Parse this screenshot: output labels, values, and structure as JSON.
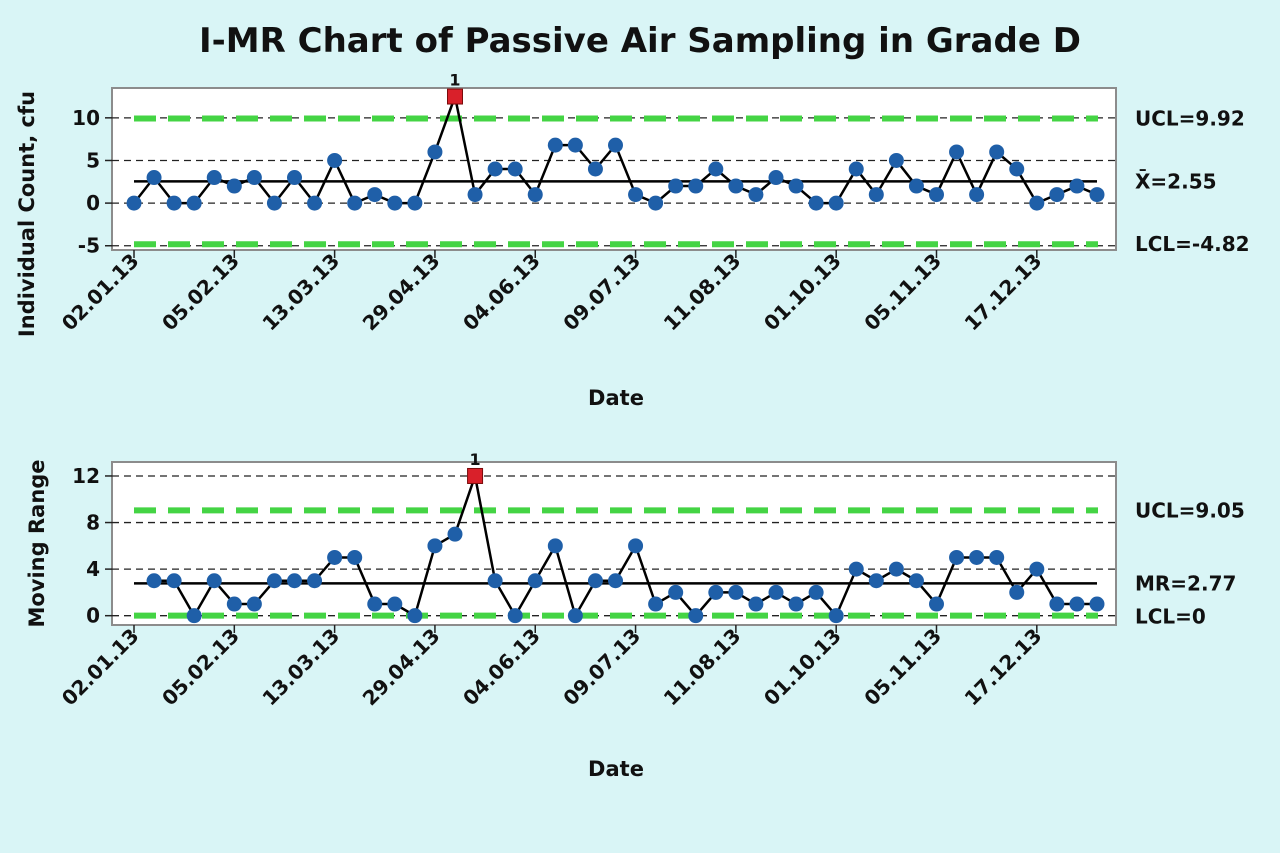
{
  "chart_data": [
    {
      "type": "line",
      "panel": "individuals",
      "title": "I-MR Chart of  Passive Air Sampling in Grade D",
      "xlabel": "Date",
      "ylabel": "Individual Count, cfu",
      "x_tick_labels": [
        "02.01.13",
        "05.02.13",
        "13.03.13",
        "29.04.13",
        "04.06.13",
        "09.07.13",
        "11.08.13",
        "01.10.13",
        "05.11.13",
        "17.12.13"
      ],
      "y_ticks": [
        -5,
        0,
        5,
        10
      ],
      "ylim": [
        -5.5,
        13.5
      ],
      "values": [
        0,
        3,
        0,
        0,
        3,
        2,
        3,
        0,
        3,
        0,
        5,
        0,
        1,
        0,
        0,
        6,
        12.5,
        1,
        4,
        4,
        1,
        6.8,
        6.8,
        4,
        6.8,
        1,
        0,
        2,
        2,
        4,
        2,
        1,
        3,
        2,
        0,
        0,
        4,
        1,
        5,
        2,
        1,
        6,
        1,
        6,
        4,
        0,
        1,
        2,
        1
      ],
      "flagged_points": [
        {
          "index": 16,
          "label": "1"
        }
      ],
      "center_line": 2.55,
      "ucl": 9.92,
      "lcl": -4.82,
      "labels": {
        "ucl": "UCL=9.92",
        "center": "X̄=2.55",
        "lcl": "LCL=-4.82"
      },
      "grid": "horizontal dashed",
      "colors": {
        "points": "#1f5fa8",
        "flagged": "#d9202a",
        "line": "#000000",
        "limits": "#44d444",
        "center": "#000000"
      }
    },
    {
      "type": "line",
      "panel": "moving_range",
      "xlabel": "Date",
      "ylabel": "Moving Range",
      "x_tick_labels": [
        "02.01.13",
        "05.02.13",
        "13.03.13",
        "29.04.13",
        "04.06.13",
        "09.07.13",
        "11.08.13",
        "01.10.13",
        "05.11.13",
        "17.12.13"
      ],
      "y_ticks": [
        0,
        4,
        8,
        12
      ],
      "ylim": [
        -0.8,
        13.2
      ],
      "start_index": 1,
      "values": [
        3,
        3,
        0,
        3,
        1,
        1,
        3,
        3,
        3,
        5,
        5,
        1,
        1,
        0,
        6,
        7,
        12,
        3,
        0,
        3,
        6,
        0,
        3,
        3,
        6,
        1,
        2,
        0,
        2,
        2,
        1,
        2,
        1,
        2,
        0,
        4,
        3,
        4,
        3,
        1,
        5,
        5,
        5,
        2,
        4,
        1,
        1,
        1
      ],
      "flagged_points": [
        {
          "index": 17,
          "label": "1"
        }
      ],
      "center_line": 2.77,
      "ucl": 9.05,
      "lcl": 0,
      "labels": {
        "ucl": "UCL=9.05",
        "center": "MR=2.77",
        "lcl": "LCL=0"
      },
      "grid": "horizontal dashed"
    }
  ]
}
